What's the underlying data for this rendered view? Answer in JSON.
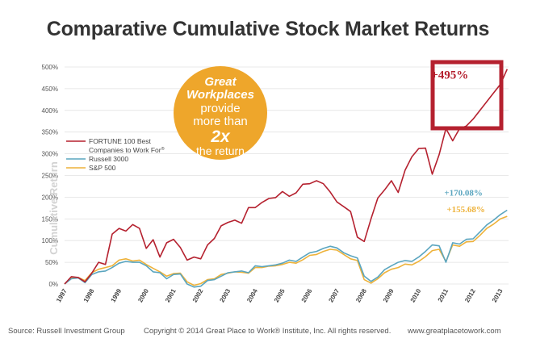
{
  "chart_data": {
    "type": "line",
    "title": "Comparative Cumulative Stock Market Returns",
    "ylabel": "Cumulative Return",
    "xlabel": "",
    "ylim": [
      0,
      500
    ],
    "xlim": [
      1997,
      2013.3
    ],
    "y_ticks": [
      0,
      50,
      100,
      150,
      200,
      250,
      300,
      350,
      400,
      450,
      500
    ],
    "y_tick_labels": [
      "0%",
      "50%",
      "100%",
      "150%",
      "200%",
      "250%",
      "300%",
      "350%",
      "400%",
      "450%",
      "500%"
    ],
    "x_ticks": [
      1997,
      1998,
      1999,
      2000,
      2001,
      2002,
      2003,
      2004,
      2005,
      2006,
      2007,
      2008,
      2009,
      2010,
      2011,
      2012,
      2013
    ],
    "x_tick_labels": [
      "1997",
      "1998",
      "1999",
      "2000",
      "2001",
      "2002",
      "2003",
      "2004",
      "2005",
      "2006",
      "2007",
      "2008",
      "2009",
      "2010",
      "2011",
      "2012",
      "2013"
    ],
    "grid": true,
    "legend_position": "left",
    "series": [
      {
        "name": "FORTUNE 100 Best Companies to Work For®",
        "color": "#b5212f",
        "x": [
          1997.0,
          1997.25,
          1997.5,
          1997.75,
          1998.0,
          1998.25,
          1998.5,
          1998.75,
          1999.0,
          1999.25,
          1999.5,
          1999.75,
          2000.0,
          2000.25,
          2000.5,
          2000.75,
          2001.0,
          2001.25,
          2001.5,
          2001.75,
          2002.0,
          2002.25,
          2002.5,
          2002.75,
          2003.0,
          2003.25,
          2003.5,
          2003.75,
          2004.0,
          2004.25,
          2004.5,
          2004.75,
          2005.0,
          2005.25,
          2005.5,
          2005.75,
          2006.0,
          2006.25,
          2006.5,
          2006.75,
          2007.0,
          2007.25,
          2007.5,
          2007.75,
          2008.0,
          2008.25,
          2008.5,
          2008.75,
          2009.0,
          2009.25,
          2009.5,
          2009.75,
          2010.0,
          2010.25,
          2010.5,
          2010.75,
          2011.0,
          2011.25,
          2011.5,
          2011.75,
          2012.0,
          2012.25,
          2012.5,
          2012.75,
          2013.0,
          2013.25
        ],
        "values": [
          0,
          17,
          15,
          5,
          25,
          50,
          45,
          115,
          128,
          122,
          137,
          128,
          82,
          102,
          62,
          95,
          103,
          84,
          55,
          62,
          58,
          90,
          105,
          134,
          142,
          147,
          140,
          176,
          176,
          188,
          197,
          199,
          213,
          202,
          210,
          230,
          231,
          238,
          231,
          212,
          189,
          178,
          167,
          108,
          98,
          150,
          198,
          217,
          238,
          211,
          262,
          293,
          312,
          313,
          253,
          298,
          358,
          330,
          358,
          364,
          380,
          400,
          420,
          440,
          460,
          495
        ]
      },
      {
        "name": "Russell 3000",
        "color": "#5aa5bf",
        "x": [
          1997.0,
          1997.25,
          1997.5,
          1997.75,
          1998.0,
          1998.25,
          1998.5,
          1998.75,
          1999.0,
          1999.25,
          1999.5,
          1999.75,
          2000.0,
          2000.25,
          2000.5,
          2000.75,
          2001.0,
          2001.25,
          2001.5,
          2001.75,
          2002.0,
          2002.25,
          2002.5,
          2002.75,
          2003.0,
          2003.25,
          2003.5,
          2003.75,
          2004.0,
          2004.25,
          2004.5,
          2004.75,
          2005.0,
          2005.25,
          2005.5,
          2005.75,
          2006.0,
          2006.25,
          2006.5,
          2006.75,
          2007.0,
          2007.25,
          2007.5,
          2007.75,
          2008.0,
          2008.25,
          2008.5,
          2008.75,
          2009.0,
          2009.25,
          2009.5,
          2009.75,
          2010.0,
          2010.25,
          2010.5,
          2010.75,
          2011.0,
          2011.25,
          2011.5,
          2011.75,
          2012.0,
          2012.25,
          2012.5,
          2012.75,
          2013.0,
          2013.25
        ],
        "values": [
          0,
          12,
          14,
          3,
          22,
          28,
          30,
          38,
          48,
          52,
          50,
          50,
          42,
          28,
          26,
          12,
          22,
          23,
          0,
          -7,
          -5,
          8,
          10,
          18,
          26,
          28,
          30,
          26,
          42,
          40,
          42,
          44,
          48,
          55,
          52,
          62,
          72,
          75,
          82,
          87,
          83,
          72,
          65,
          60,
          18,
          6,
          16,
          33,
          42,
          50,
          54,
          52,
          62,
          75,
          90,
          88,
          50,
          95,
          92,
          103,
          104,
          120,
          136,
          147,
          160,
          170
        ]
      },
      {
        "name": "S&P 500",
        "color": "#eeb23a",
        "x": [
          1997.0,
          1997.25,
          1997.5,
          1997.75,
          1998.0,
          1998.25,
          1998.5,
          1998.75,
          1999.0,
          1999.25,
          1999.5,
          1999.75,
          2000.0,
          2000.25,
          2000.5,
          2000.75,
          2001.0,
          2001.25,
          2001.5,
          2001.75,
          2002.0,
          2002.25,
          2002.5,
          2002.75,
          2003.0,
          2003.25,
          2003.5,
          2003.75,
          2004.0,
          2004.25,
          2004.5,
          2004.75,
          2005.0,
          2005.25,
          2005.5,
          2005.75,
          2006.0,
          2006.25,
          2006.5,
          2006.75,
          2007.0,
          2007.25,
          2007.5,
          2007.75,
          2008.0,
          2008.25,
          2008.5,
          2008.75,
          2009.0,
          2009.25,
          2009.5,
          2009.75,
          2010.0,
          2010.25,
          2010.5,
          2010.75,
          2011.0,
          2011.25,
          2011.5,
          2011.75,
          2012.0,
          2012.25,
          2012.5,
          2012.75,
          2013.0,
          2013.25
        ],
        "values": [
          0,
          14,
          15,
          8,
          26,
          34,
          38,
          42,
          55,
          58,
          53,
          55,
          45,
          36,
          28,
          18,
          24,
          25,
          5,
          -3,
          1,
          10,
          12,
          22,
          25,
          28,
          27,
          25,
          38,
          38,
          41,
          42,
          45,
          50,
          48,
          56,
          66,
          68,
          75,
          80,
          78,
          68,
          58,
          54,
          10,
          2,
          12,
          26,
          34,
          38,
          46,
          44,
          52,
          63,
          77,
          80,
          52,
          90,
          87,
          97,
          98,
          112,
          128,
          138,
          150,
          156
        ]
      }
    ],
    "annotations": [
      {
        "text": "+495%",
        "color": "#b5212f",
        "series": 0
      },
      {
        "text": "+170.08%",
        "color": "#5aa5bf",
        "series": 1
      },
      {
        "text": "+155.68%",
        "color": "#eeb23a",
        "series": 2
      }
    ]
  },
  "callout": {
    "line1": "Great",
    "line2": "Workplaces",
    "line3": "provide",
    "line4": "more than",
    "line5": "2x",
    "line6": "the return",
    "color": "#eea62b"
  },
  "legend": {
    "item1_line1": "FORTUNE 100 Best",
    "item1_line2": "Companies to Work For",
    "item1_mark": "®",
    "item2": "Russell 3000",
    "item3": "S&P 500"
  },
  "footer": {
    "source": "Source: Russell Investment Group",
    "copyright": "Copyright © 2014 Great Place to Work® Institute, Inc. All rights reserved.",
    "url": "www.greatplacetowork.com"
  }
}
